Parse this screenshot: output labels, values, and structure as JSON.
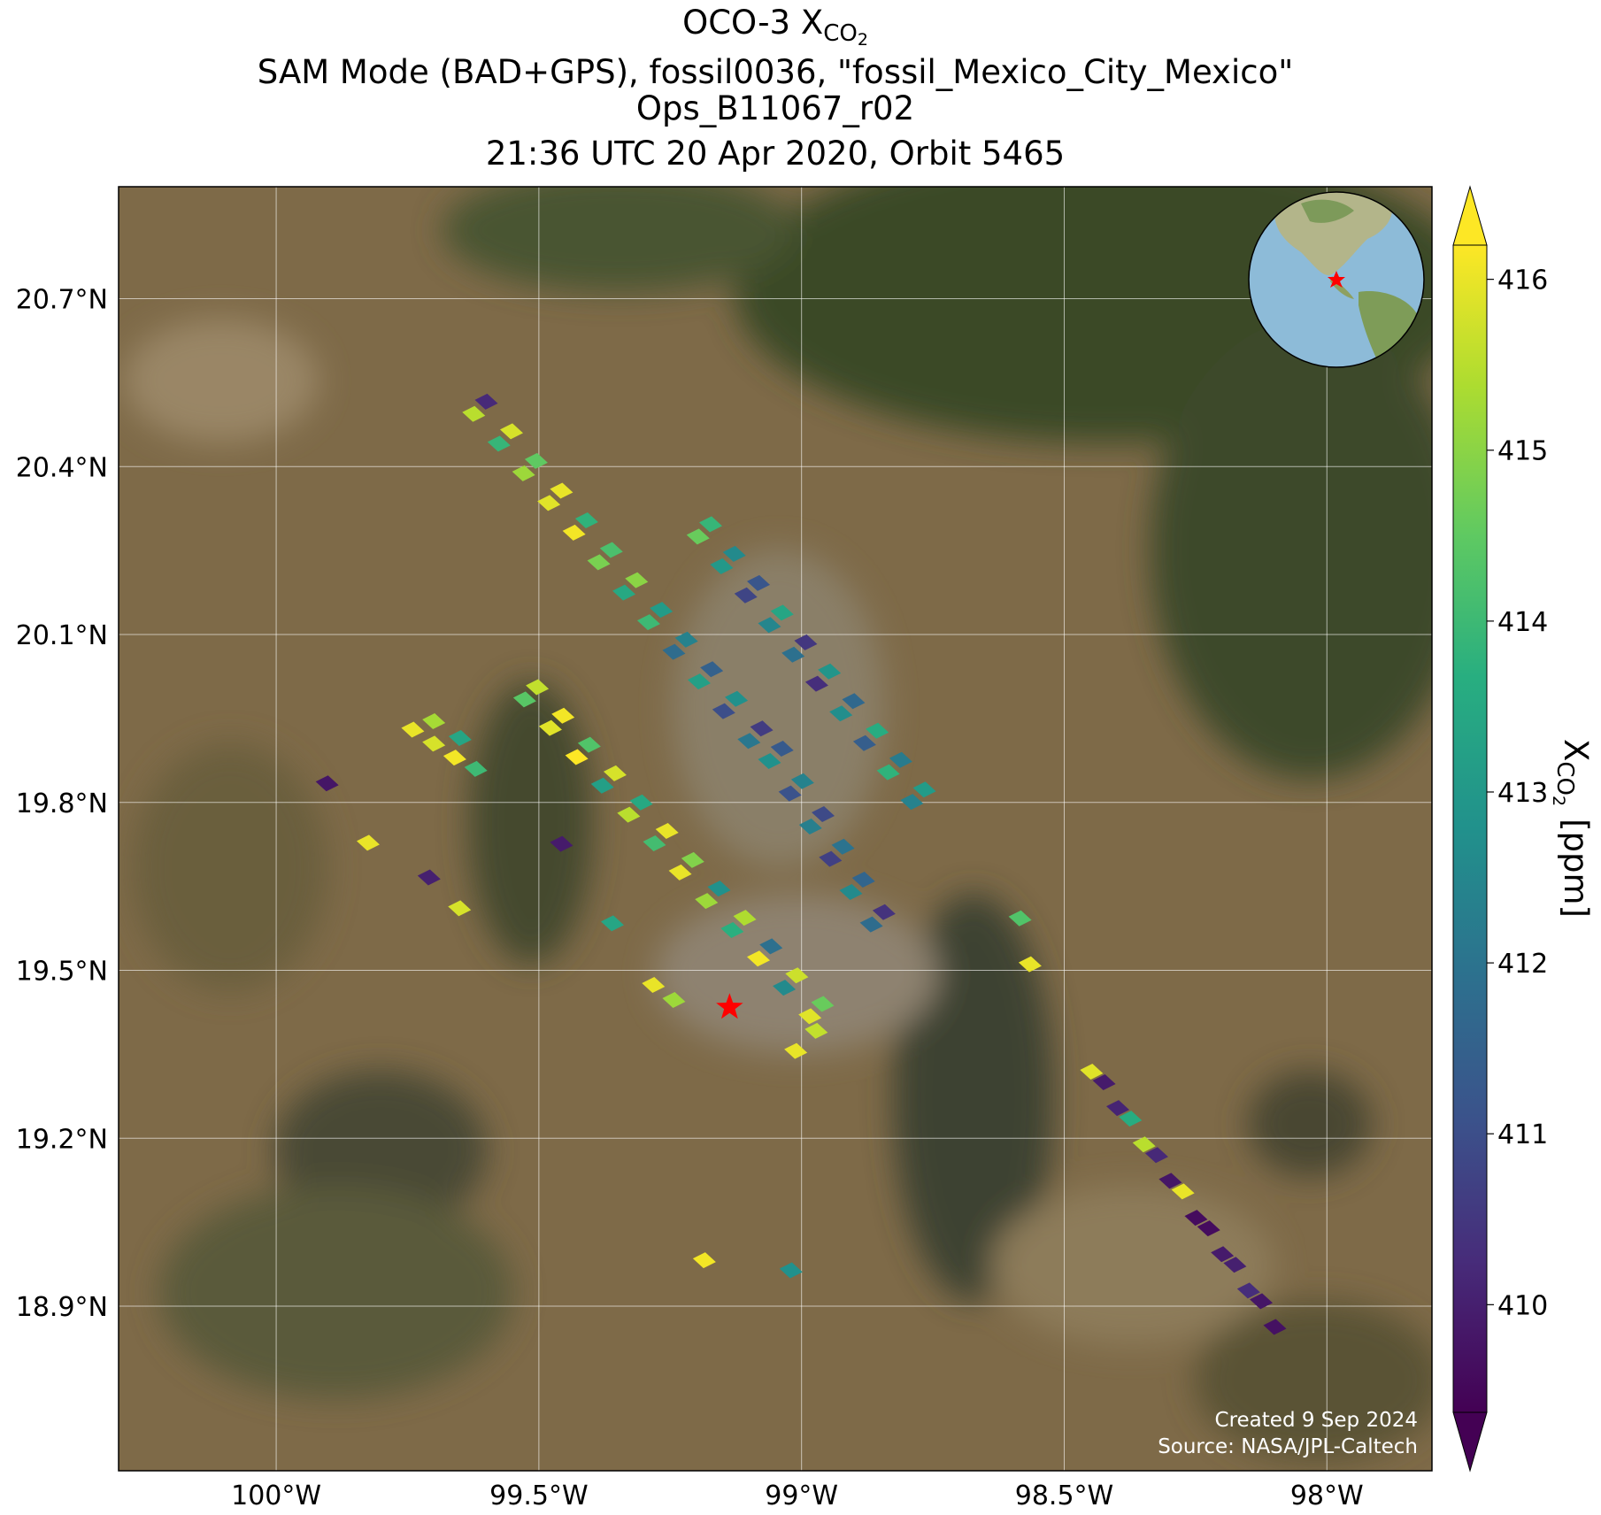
{
  "chart_data": {
    "type": "map",
    "title": {
      "text": "OCO-3 X",
      "sub": "CO",
      "subsub": "2"
    },
    "subtitle": [
      "SAM Mode (BAD+GPS), fossil0036, \"fossil_Mexico_City_Mexico\"",
      "Ops_B11067_r02",
      "21:36 UTC 20 Apr 2020, Orbit 5465"
    ],
    "xlim": [
      -100.3,
      -97.8
    ],
    "ylim": [
      18.606,
      20.9
    ],
    "xticks": [
      {
        "value": -100,
        "label": "100°W"
      },
      {
        "value": -99.5,
        "label": "99.5°W"
      },
      {
        "value": -99,
        "label": "99°W"
      },
      {
        "value": -98.5,
        "label": "98.5°W"
      },
      {
        "value": -98,
        "label": "98°W"
      }
    ],
    "yticks": [
      {
        "value": 18.9,
        "label": "18.9°N"
      },
      {
        "value": 19.2,
        "label": "19.2°N"
      },
      {
        "value": 19.5,
        "label": "19.5°N"
      },
      {
        "value": 19.8,
        "label": "19.8°N"
      },
      {
        "value": 20.1,
        "label": "20.1°N"
      },
      {
        "value": 20.4,
        "label": "20.4°N"
      },
      {
        "value": 20.7,
        "label": "20.7°N"
      }
    ],
    "grid": true,
    "lon": [
      -99.6,
      -99.552,
      -99.505,
      -99.457,
      -99.409,
      -99.362,
      -99.314,
      -99.267,
      -99.219,
      -99.171,
      -99.124,
      -99.076,
      -99.624,
      -99.576,
      -99.529,
      -99.481,
      -99.433,
      -99.386,
      -99.338,
      -99.291,
      -99.243,
      -99.195,
      -99.148,
      -99.1,
      -99.173,
      -99.128,
      -99.082,
      -99.037,
      -98.992,
      -98.947,
      -98.901,
      -98.856,
      -98.811,
      -98.766,
      -99.197,
      -99.152,
      -99.106,
      -99.061,
      -99.016,
      -98.971,
      -98.925,
      -98.88,
      -98.835,
      -98.79,
      -99.037,
      -98.998,
      -98.959,
      -98.921,
      -98.882,
      -98.843,
      -99.061,
      -99.022,
      -98.983,
      -98.945,
      -98.906,
      -98.867,
      -99.503,
      -99.454,
      -99.404,
      -99.355,
      -99.305,
      -99.256,
      -99.207,
      -99.157,
      -99.108,
      -99.058,
      -99.009,
      -98.96,
      -99.527,
      -99.478,
      -99.428,
      -99.379,
      -99.329,
      -99.28,
      -99.231,
      -99.181,
      -99.132,
      -99.082,
      -99.033,
      -98.984,
      -99.74,
      -99.7,
      -99.66,
      -99.62,
      -99.7,
      -99.65,
      -99.903,
      -99.457,
      -99.825,
      -99.709,
      -99.651,
      -99.36,
      -99.282,
      -99.243,
      -98.972,
      -99.011,
      -99.185,
      -99.02,
      -98.565,
      -98.584,
      -98.448,
      -98.398,
      -98.348,
      -98.298,
      -98.249,
      -98.199,
      -98.149,
      -98.099,
      -98.424,
      -98.374,
      -98.324,
      -98.274,
      -98.225,
      -98.175,
      -98.125
    ],
    "lat": [
      20.516,
      20.463,
      20.41,
      20.357,
      20.304,
      20.251,
      20.197,
      20.144,
      20.091,
      20.038,
      19.985,
      19.932,
      20.494,
      20.441,
      20.388,
      20.335,
      20.282,
      20.229,
      20.175,
      20.122,
      20.069,
      20.016,
      19.963,
      19.91,
      20.297,
      20.244,
      20.192,
      20.139,
      20.086,
      20.034,
      19.981,
      19.928,
      19.876,
      19.823,
      20.275,
      20.222,
      20.17,
      20.117,
      20.064,
      20.012,
      19.959,
      19.906,
      19.854,
      19.801,
      19.896,
      19.838,
      19.779,
      19.721,
      19.662,
      19.604,
      19.874,
      19.816,
      19.757,
      19.699,
      19.64,
      19.582,
      20.006,
      19.955,
      19.903,
      19.852,
      19.8,
      19.749,
      19.697,
      19.646,
      19.594,
      19.543,
      19.491,
      19.44,
      19.984,
      19.933,
      19.881,
      19.83,
      19.778,
      19.727,
      19.675,
      19.624,
      19.572,
      19.521,
      19.469,
      19.418,
      19.93,
      19.905,
      19.88,
      19.86,
      19.945,
      19.915,
      19.834,
      19.726,
      19.728,
      19.666,
      19.611,
      19.584,
      19.474,
      19.447,
      19.392,
      19.356,
      18.982,
      18.964,
      19.511,
      19.593,
      19.319,
      19.254,
      19.189,
      19.124,
      19.058,
      18.993,
      18.928,
      18.863,
      19.3,
      19.235,
      19.17,
      19.105,
      19.039,
      18.974,
      18.909
    ],
    "values": [
      410.2,
      415.8,
      414.5,
      416.0,
      413.8,
      414.2,
      415.0,
      413.1,
      412.4,
      411.5,
      412.8,
      410.6,
      415.5,
      413.9,
      415.2,
      415.9,
      416.1,
      414.8,
      413.5,
      414.0,
      411.8,
      413.2,
      411.0,
      412.1,
      413.9,
      412.6,
      411.2,
      413.4,
      410.5,
      412.9,
      411.7,
      413.6,
      412.2,
      413.1,
      414.6,
      413.0,
      410.8,
      412.5,
      411.9,
      410.3,
      412.7,
      411.4,
      413.8,
      412.4,
      411.3,
      412.4,
      410.9,
      412.0,
      411.6,
      410.4,
      412.8,
      411.1,
      412.3,
      410.7,
      412.6,
      411.8,
      415.6,
      416.1,
      414.3,
      415.8,
      413.5,
      416.0,
      414.9,
      412.8,
      415.4,
      411.9,
      415.7,
      414.6,
      414.4,
      415.9,
      416.2,
      413.2,
      415.5,
      414.1,
      416.0,
      415.2,
      413.7,
      416.1,
      412.6,
      415.9,
      416.0,
      415.8,
      416.1,
      414.0,
      415.3,
      413.4,
      409.8,
      409.9,
      416.0,
      410.0,
      415.8,
      413.4,
      416.0,
      415.2,
      415.6,
      416.0,
      416.1,
      412.8,
      416.0,
      414.3,
      415.9,
      410.1,
      415.5,
      409.8,
      409.6,
      409.9,
      410.3,
      409.7,
      409.9,
      413.6,
      410.2,
      416.0,
      409.6,
      410.0,
      409.8
    ],
    "colormap": "viridis",
    "clim": [
      409.37,
      416.2
    ],
    "cticks": [
      410,
      411,
      412,
      413,
      414,
      415,
      416
    ],
    "colorbar_label": {
      "text": "X",
      "sub": "CO",
      "subsub": "2",
      "unit": "[ppm]"
    },
    "target": {
      "lon": -99.137,
      "lat": 19.434,
      "color": "red"
    },
    "annotations": [
      "Created 9 Sep 2024",
      "Source: NASA/JPL-Caltech"
    ]
  }
}
